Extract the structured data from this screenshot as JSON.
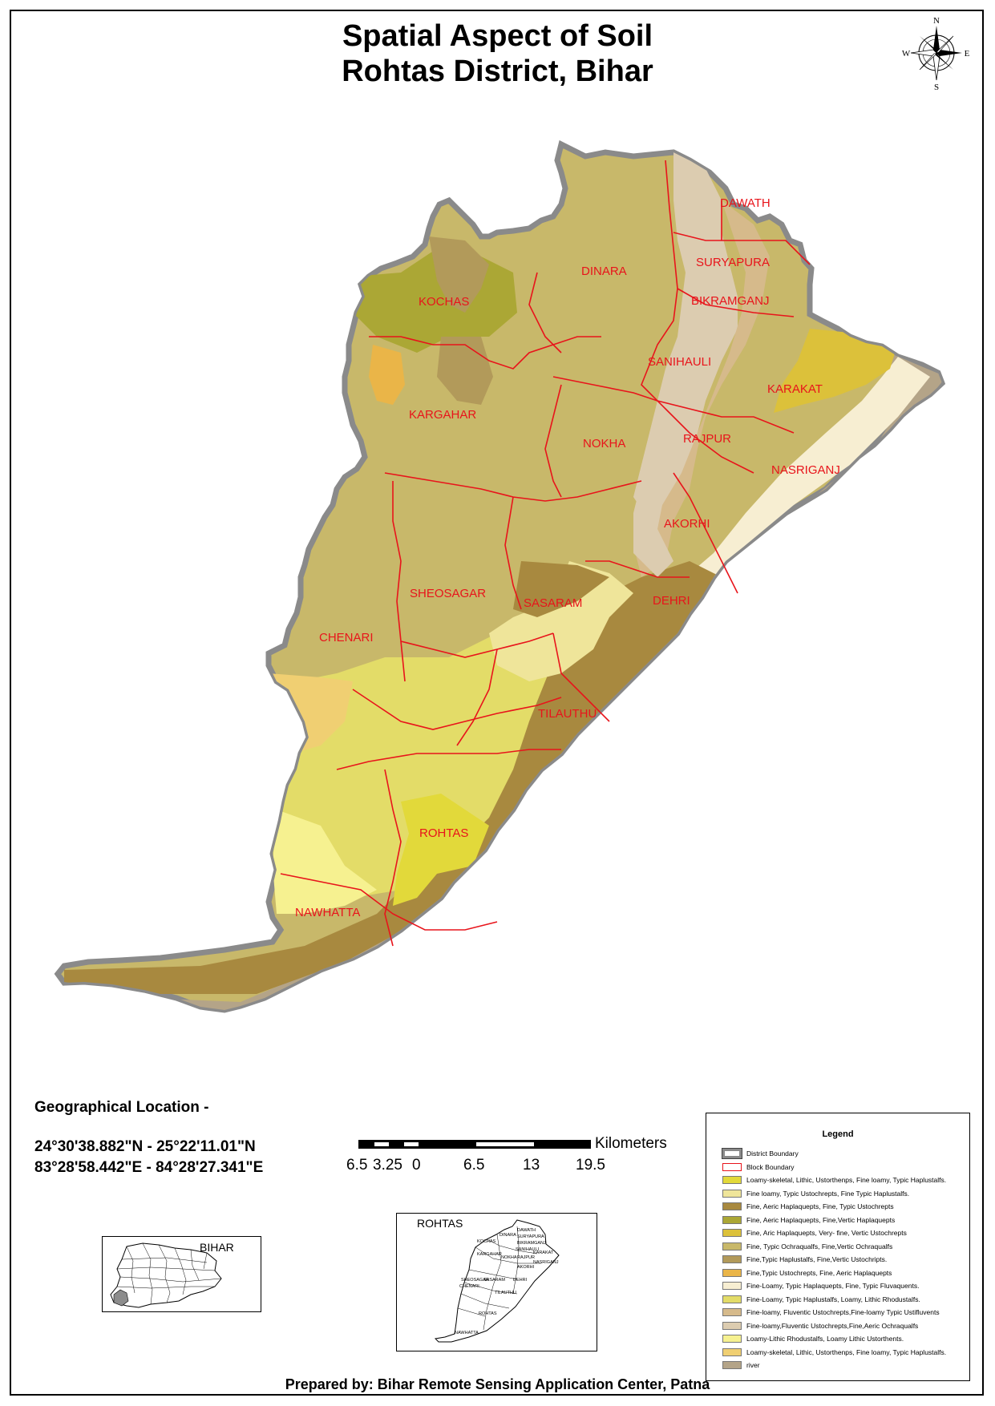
{
  "title_line1": "Spatial Aspect of Soil",
  "title_line2": "Rohtas District, Bihar",
  "compass": {
    "n": "N",
    "s": "S",
    "e": "E",
    "w": "W"
  },
  "blocks": [
    "DAWATH",
    "SURYAPURA",
    "DINARA",
    "BIKRAMGANJ",
    "KOCHAS",
    "SANIHAULI",
    "KARAKAT",
    "KARGAHAR",
    "RAJPUR",
    "NOKHA",
    "NASRIGANJ",
    "AKORHI",
    "SHEOSAGAR",
    "SASARAM",
    "DEHRI",
    "CHENARI",
    "TILAUTHU",
    "ROHTAS",
    "NAWHATTA"
  ],
  "geo": {
    "heading": "Geographical Location -",
    "lat_range": "24°30'38.882\"N - 25°22'11.01\"N",
    "lon_range": "83°28'58.442\"E - 84°28'27.341\"E"
  },
  "scale": {
    "unit": "Kilometers",
    "ticks": [
      "6.5",
      "3.25",
      "0",
      "6.5",
      "13",
      "19.5"
    ]
  },
  "inset_bihar_label": "BIHAR",
  "inset_rohtas_label": "ROHTAS",
  "inset_rohtas_blocks": [
    "KOCHAS",
    "DINARA",
    "DAWATH",
    "SURYAPURA",
    "BIKRAMGANJ",
    "KARGAHAR",
    "NOKHA",
    "SANIHAULI",
    "KARAKAT",
    "RAJPUR",
    "NASRIGANJ",
    "AKORHI",
    "DEHRI",
    "SHEOSAGAR",
    "SASARAM",
    "CHENARI",
    "TILAUTHU",
    "ROHTAS",
    "NAWHATTA"
  ],
  "legend": {
    "title": "Legend",
    "items": [
      {
        "label": "District Boundary",
        "type": "district"
      },
      {
        "label": "Block Boundary",
        "type": "block"
      },
      {
        "label": " Loamy-skeletal, Lithic, Ustorthenps, Fine loamy, Typic Haplustalfs.",
        "color": "#e2d93a"
      },
      {
        "label": "Fine loamy, Typic Ustochrepts, Fine Typic Haplustalfs.",
        "color": "#efe59a"
      },
      {
        "label": "Fine, Aeric Haplaquepts, Fine, Typic Ustochrepts",
        "color": "#a8893f"
      },
      {
        "label": "Fine, Aeric Haplaquepts, Fine,Vertic Haplaquepts",
        "color": "#aba735"
      },
      {
        "label": "Fine, Aric Haplaquepts, Very- fine, Vertic Ustochrepts",
        "color": "#dcc13a"
      },
      {
        "label": "Fine, Typic Ochraqualfs, Fine,Vertic Ochraqualfs",
        "color": "#c8b86a"
      },
      {
        "label": "Fine,Typic Haplustalfs, Fine,Vertic Ustochripts.",
        "color": "#b29a5a"
      },
      {
        "label": "Fine,Typic Ustochrepts, Fine, Aeric Haplaquepts",
        "color": "#eab548"
      },
      {
        "label": "Fine-Loamy, Typic Haplaquepts, Fine, Typic Fluvaquents.",
        "color": "#f7eed2"
      },
      {
        "label": "Fine-Loamy, Typic Haplustalfs, Loamy, Lithic Rhodustalfs.",
        "color": "#e3dc68"
      },
      {
        "label": "Fine-loamy, Fluventic Ustochrepts,Fine-loamy Typic Ustifluvents",
        "color": "#d6ba8b"
      },
      {
        "label": "Fine-loamy,Fluventic Ustochrepts,Fine,Aeric Ochraqualfs",
        "color": "#dcccb0"
      },
      {
        "label": "Loamy-Lithic Rhodustalfs, Loamy Lithic Ustorthents.",
        "color": "#f6f190"
      },
      {
        "label": "Loamy-skeletal, Lithic, Ustorthenps, Fine loamy, Typic Haplustalfs.",
        "color": "#f0cf72"
      },
      {
        "label": "river",
        "color": "#b4a488"
      }
    ]
  },
  "prepared_by": "Prepared by: Bihar Remote Sensing Application Center, Patna"
}
